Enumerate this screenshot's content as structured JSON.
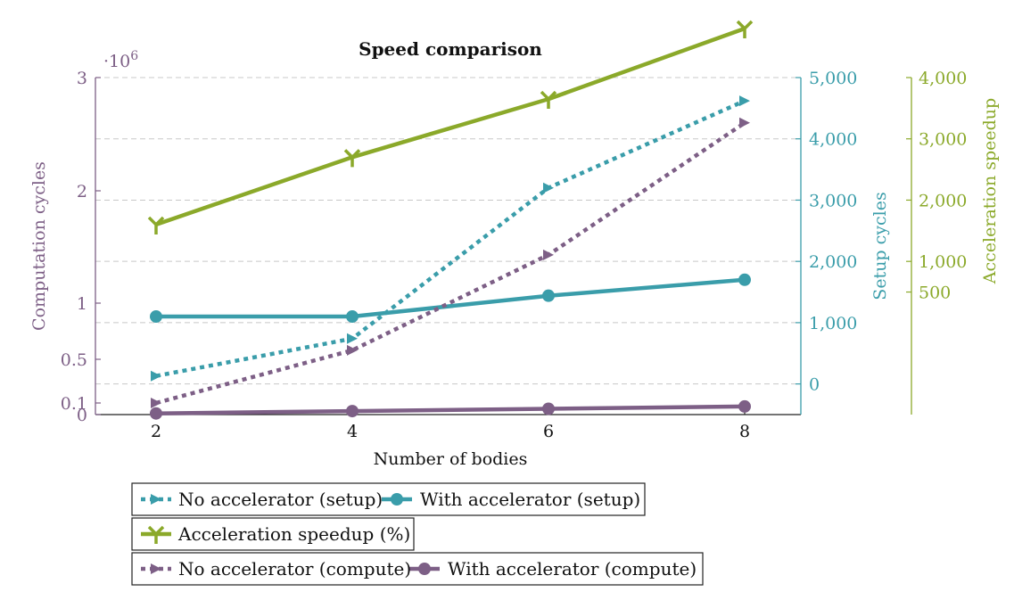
{
  "chart_data": {
    "type": "line",
    "title": "Speed comparison",
    "xlabel": "Number of bodies",
    "x": [
      2,
      4,
      6,
      8
    ],
    "x_ticks": [
      "2",
      "4",
      "6",
      "8"
    ],
    "grid": true,
    "legend_position": "bottom",
    "axes": {
      "left": {
        "label": "Computation cycles",
        "multiplier": "·10",
        "multiplier_exp": "6",
        "range": [
          0,
          3
        ],
        "ticks": [
          0,
          0.1,
          0.5,
          1,
          2,
          3
        ],
        "tick_labels": [
          "0",
          "0.1",
          "0.5",
          "1",
          "2",
          "3"
        ],
        "color": "#7d5f86"
      },
      "right1": {
        "label": "Setup cycles",
        "range": [
          -500,
          5000
        ],
        "ticks": [
          0,
          1000,
          2000,
          3000,
          4000,
          5000
        ],
        "tick_labels": [
          "0",
          "1,000",
          "2,000",
          "3,000",
          "4,000",
          "5,000"
        ],
        "color": "#3a9daa"
      },
      "right2": {
        "label": "Acceleration speedup",
        "range": [
          -1500,
          4000
        ],
        "ticks": [
          500,
          1000,
          2000,
          3000,
          4000
        ],
        "tick_labels": [
          "500",
          "1,000",
          "2,000",
          "3,000",
          "4,000"
        ],
        "color": "#8ba92a"
      }
    },
    "series": [
      {
        "name": "No accelerator (setup)",
        "axis": "right1",
        "style": "dotted",
        "marker": "arrow",
        "color": "#3a9daa",
        "values": [
          130,
          740,
          3200,
          4620
        ]
      },
      {
        "name": "With accelerator (setup)",
        "axis": "right1",
        "style": "solid",
        "marker": "circle",
        "color": "#3a9daa",
        "values": [
          1100,
          1100,
          1440,
          1700
        ]
      },
      {
        "name": "Acceleration speedup (%)",
        "axis": "right2",
        "style": "solid",
        "marker": "tri",
        "color": "#8ba92a",
        "values": [
          1600,
          2700,
          3650,
          4800
        ]
      },
      {
        "name": "No accelerator (compute)",
        "axis": "left",
        "style": "dotted",
        "marker": "arrow",
        "color": "#7d5f86",
        "values": [
          0.1,
          0.58,
          1.43,
          2.6
        ]
      },
      {
        "name": "With accelerator (compute)",
        "axis": "left",
        "style": "solid",
        "marker": "circle",
        "color": "#7d5f86",
        "values": [
          0.01,
          0.03,
          0.05,
          0.07
        ]
      }
    ]
  }
}
